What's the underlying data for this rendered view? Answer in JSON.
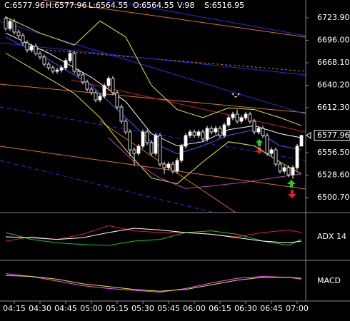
{
  "chart_data": {
    "type": "candlestick",
    "header": [
      "C:6577.96",
      "H:6577.96",
      "L:6564.55",
      "O:6564.55",
      "V:98",
      "S:6516.95"
    ],
    "categories": [
      null,
      null,
      "04:15",
      null,
      null,
      null,
      null,
      null,
      "04:30",
      null,
      null,
      null,
      null,
      null,
      "04:45",
      null,
      null,
      null,
      null,
      null,
      "05:00",
      null,
      null,
      null,
      null,
      null,
      "05:15",
      null,
      null,
      null,
      null,
      null,
      "05:30",
      null,
      null,
      null,
      null,
      null,
      "05:45",
      null,
      null,
      null,
      null,
      null,
      "06:00",
      null,
      null,
      null,
      null,
      null,
      "06:15",
      null,
      null,
      null,
      null,
      null,
      "06:30",
      null,
      null,
      null,
      null,
      null,
      "06:45",
      null,
      null,
      null,
      null,
      null,
      "07:00",
      null
    ],
    "open": [
      6723.0,
      6710.6,
      6719.5,
      6706.2,
      6701.8,
      6692.9,
      6684.0,
      6688.5,
      6679.6,
      6675.2,
      6666.3,
      6661.9,
      6657.5,
      6659.0,
      6661.9,
      6670.8,
      6679.6,
      6657.5,
      6653.0,
      6644.2,
      6635.3,
      6630.9,
      6622.0,
      6626.5,
      6639.8,
      6648.6,
      6630.9,
      6613.2,
      6595.5,
      6582.2,
      6560.0,
      6555.6,
      6564.5,
      6582.2,
      6568.9,
      6555.6,
      6577.8,
      6542.3,
      6537.9,
      6542.3,
      6533.5,
      6546.8,
      6564.5,
      6577.8,
      6582.2,
      6577.8,
      6582.2,
      6573.3,
      6586.6,
      6582.2,
      6586.6,
      6577.8,
      6591.0,
      6599.9,
      6604.3,
      6595.5,
      6599.9,
      6604.3,
      6595.5,
      6582.2,
      6586.6,
      6577.8,
      6555.6,
      6560.0,
      6542.3,
      6533.5,
      6537.9,
      6529.0,
      6537.9,
      6564.55
    ],
    "high": [
      6726.0,
      6722.5,
      6722.5,
      6709.2,
      6704.8,
      6695.9,
      6691.5,
      6691.5,
      6682.6,
      6678.2,
      6669.3,
      6664.9,
      6662.0,
      6664.9,
      6673.8,
      6684.0,
      6682.6,
      6660.5,
      6656.0,
      6647.2,
      6638.3,
      6633.9,
      6629.5,
      6642.8,
      6651.6,
      6651.6,
      6633.9,
      6616.2,
      6598.5,
      6585.2,
      6563.0,
      6567.5,
      6585.2,
      6585.2,
      6571.9,
      6580.8,
      6580.8,
      6545.3,
      6545.3,
      6545.3,
      6549.8,
      6567.5,
      6580.8,
      6585.2,
      6585.2,
      6585.2,
      6585.2,
      6589.6,
      6589.6,
      6589.6,
      6589.6,
      6594.0,
      6602.9,
      6607.3,
      6610.0,
      6602.9,
      6607.3,
      6607.3,
      6598.5,
      6589.6,
      6589.6,
      6580.8,
      6563.0,
      6563.0,
      6545.3,
      6540.9,
      6540.9,
      6540.9,
      6567.5,
      6577.96
    ],
    "low": [
      6707.6,
      6707.6,
      6703.2,
      6698.8,
      6689.9,
      6681.0,
      6681.0,
      6676.6,
      6672.2,
      6663.3,
      6658.9,
      6654.5,
      6654.5,
      6656.0,
      6658.9,
      6667.8,
      6654.5,
      6650.0,
      6641.2,
      6632.3,
      6627.9,
      6619.0,
      6619.0,
      6623.5,
      6636.8,
      6627.9,
      6610.2,
      6592.5,
      6579.2,
      6552.0,
      6540.0,
      6552.6,
      6561.5,
      6565.9,
      6552.6,
      6552.6,
      6539.3,
      6530.0,
      6534.9,
      6530.5,
      6530.5,
      6543.8,
      6561.5,
      6574.8,
      6574.8,
      6574.8,
      6570.3,
      6570.3,
      6579.2,
      6579.2,
      6574.8,
      6574.8,
      6588.0,
      6596.9,
      6592.5,
      6592.5,
      6596.9,
      6592.5,
      6579.2,
      6579.2,
      6574.8,
      6552.6,
      6552.6,
      6539.3,
      6530.5,
      6530.5,
      6526.0,
      6524.0,
      6534.9,
      6564.55
    ],
    "close": [
      6710.6,
      6719.5,
      6706.2,
      6701.8,
      6692.9,
      6684.0,
      6688.5,
      6679.6,
      6675.2,
      6666.3,
      6661.9,
      6657.5,
      6659.0,
      6661.9,
      6670.8,
      6679.6,
      6657.5,
      6653.0,
      6644.2,
      6635.3,
      6630.9,
      6622.0,
      6626.5,
      6639.8,
      6648.6,
      6630.9,
      6613.2,
      6595.5,
      6582.2,
      6560.0,
      6555.6,
      6564.5,
      6582.2,
      6568.9,
      6555.6,
      6577.8,
      6542.3,
      6537.9,
      6542.3,
      6533.5,
      6546.8,
      6564.5,
      6577.8,
      6582.2,
      6577.8,
      6582.2,
      6573.3,
      6586.6,
      6582.2,
      6586.6,
      6577.8,
      6591.0,
      6599.9,
      6604.3,
      6595.5,
      6599.9,
      6604.3,
      6595.5,
      6582.2,
      6586.6,
      6577.8,
      6555.6,
      6560.0,
      6542.3,
      6533.5,
      6537.9,
      6529.0,
      6537.9,
      6564.5,
      6577.96
    ],
    "ylim": [
      6482.1,
      6746.0
    ],
    "yticks": [
      {
        "value": 6723.9,
        "label": "6723.90"
      },
      {
        "value": 6696.0,
        "label": "6696.00"
      },
      {
        "value": 6668.1,
        "label": "6668.10"
      },
      {
        "value": 6640.2,
        "label": "6640.20"
      },
      {
        "value": 6612.3,
        "label": "6612.30"
      },
      {
        "value": 6556.5,
        "label": "6556.50"
      },
      {
        "value": 6528.6,
        "label": "6528.60"
      },
      {
        "value": 6500.7,
        "label": "6500.70"
      }
    ],
    "overlays": [
      {
        "color": "#e6e62e",
        "x": [
          0,
          8,
          16,
          22,
          28,
          34,
          40,
          46,
          52,
          58,
          64,
          69
        ],
        "values": [
          6725,
          6705,
          6690,
          6720,
          6700,
          6640,
          6610,
          6600,
          6612,
          6610,
          6600,
          6590
        ]
      },
      {
        "color": "#e6e62e",
        "x": [
          0,
          8,
          16,
          22,
          28,
          34,
          40,
          46,
          52,
          58,
          64,
          69
        ],
        "values": [
          6680,
          6655,
          6630,
          6600,
          6560,
          6525,
          6518,
          6545,
          6570,
          6565,
          6545,
          6530
        ]
      },
      {
        "color": "#ffffff",
        "x": [
          0,
          10,
          20,
          28,
          34,
          40,
          46,
          52,
          58,
          64,
          69
        ],
        "values": [
          6705,
          6680,
          6650,
          6620,
          6580,
          6565,
          6570,
          6585,
          6590,
          6580,
          6575
        ]
      },
      {
        "color": "#3a5cff",
        "x": [
          0,
          10,
          20,
          28,
          34,
          40,
          46,
          52,
          58,
          64,
          69
        ],
        "values": [
          6700,
          6672,
          6640,
          6600,
          6570,
          6555,
          6565,
          6578,
          6585,
          6565,
          6560
        ]
      },
      {
        "color": "#c040c0",
        "x": [
          24,
          30,
          36,
          42,
          48,
          56,
          66,
          69
        ],
        "values": [
          6575,
          6545,
          6525,
          6512,
          6515,
          6520,
          6528,
          6530
        ]
      }
    ],
    "indicators": [
      {
        "label": "ADX 14",
        "ylim": [
          0,
          50
        ],
        "series": [
          {
            "color": "#e02020",
            "x": [
              0,
              6,
              12,
              18,
              24,
              30,
              36,
              42,
              48,
              54,
              60,
              66,
              69
            ],
            "values": [
              20,
              25,
              22,
              28,
              38,
              32,
              30,
              30,
              28,
              25,
              30,
              33,
              30
            ]
          },
          {
            "color": "#20c020",
            "x": [
              0,
              6,
              12,
              18,
              24,
              30,
              36,
              42,
              48,
              54,
              60,
              66,
              69
            ],
            "values": [
              30,
              22,
              18,
              16,
              15,
              20,
              22,
              30,
              32,
              28,
              20,
              15,
              22
            ]
          },
          {
            "color": "#ffffff",
            "x": [
              0,
              6,
              12,
              18,
              24,
              30,
              36,
              42,
              48,
              54,
              60,
              66,
              69
            ],
            "values": [
              25,
              24,
              22,
              24,
              30,
              35,
              33,
              30,
              28,
              24,
              20,
              18,
              20
            ]
          }
        ]
      },
      {
        "label": "MACD",
        "ylim": [
          -20,
          20
        ],
        "series": [
          {
            "color": "#ff50ff",
            "x": [
              0,
              6,
              12,
              18,
              24,
              30,
              36,
              42,
              48,
              54,
              60,
              66,
              69
            ],
            "values": [
              8,
              5,
              0,
              -5,
              -8,
              -10,
              -12,
              -8,
              -2,
              3,
              5,
              4,
              2
            ]
          },
          {
            "color": "#e6e62e",
            "x": [
              0,
              6,
              12,
              18,
              24,
              30,
              36,
              42,
              48,
              54,
              60,
              66,
              69
            ],
            "values": [
              6,
              5,
              2,
              -3,
              -6,
              -9,
              -11,
              -9,
              -4,
              1,
              4,
              4,
              3
            ]
          }
        ]
      }
    ]
  }
}
